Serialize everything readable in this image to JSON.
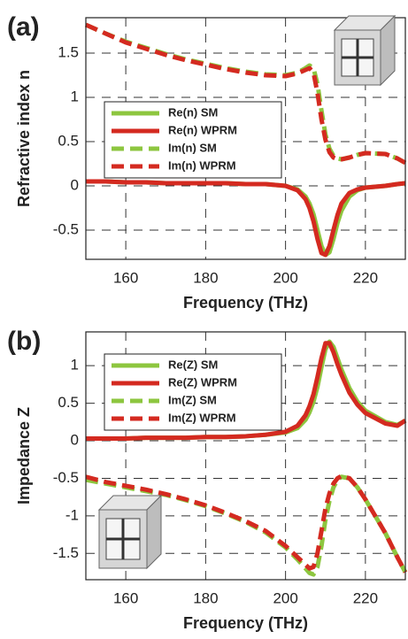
{
  "chart_data": [
    {
      "type": "line",
      "label": "(a)",
      "xlabel": "Frequency (THz)",
      "ylabel": "Refractive index n",
      "x": [
        150,
        155,
        160,
        165,
        170,
        175,
        180,
        185,
        190,
        195,
        200,
        203,
        205,
        206,
        207,
        208,
        209,
        210,
        211,
        212,
        213,
        214,
        216,
        218,
        220,
        225,
        228,
        230
      ],
      "series": [
        {
          "name": "Re(n) SM",
          "color": "#8dc63f",
          "dash": false,
          "values": [
            0.05,
            0.05,
            0.04,
            0.04,
            0.03,
            0.03,
            0.03,
            0.03,
            0.02,
            0.02,
            0,
            -0.04,
            -0.12,
            -0.2,
            -0.32,
            -0.5,
            -0.68,
            -0.78,
            -0.75,
            -0.6,
            -0.42,
            -0.28,
            -0.12,
            -0.05,
            -0.02,
            0,
            0.02,
            0.03
          ]
        },
        {
          "name": "Re(n) WPRM",
          "color": "#d42a20",
          "dash": false,
          "values": [
            0.05,
            0.05,
            0.04,
            0.04,
            0.03,
            0.03,
            0.03,
            0.03,
            0.02,
            0.02,
            0,
            -0.05,
            -0.15,
            -0.25,
            -0.4,
            -0.6,
            -0.76,
            -0.78,
            -0.68,
            -0.5,
            -0.33,
            -0.2,
            -0.08,
            -0.04,
            -0.02,
            0,
            0.02,
            0.03
          ]
        },
        {
          "name": "Im(n) SM",
          "color": "#8dc63f",
          "dash": true,
          "values": [
            1.82,
            1.72,
            1.63,
            1.56,
            1.49,
            1.43,
            1.38,
            1.33,
            1.29,
            1.26,
            1.25,
            1.28,
            1.33,
            1.36,
            1.33,
            1.15,
            0.85,
            0.58,
            0.42,
            0.34,
            0.31,
            0.3,
            0.32,
            0.35,
            0.37,
            0.36,
            0.31,
            0.26
          ]
        },
        {
          "name": "Im(n) WPRM",
          "color": "#d42a20",
          "dash": true,
          "values": [
            1.82,
            1.72,
            1.62,
            1.55,
            1.48,
            1.42,
            1.37,
            1.32,
            1.28,
            1.25,
            1.24,
            1.27,
            1.31,
            1.33,
            1.28,
            1.05,
            0.75,
            0.52,
            0.38,
            0.32,
            0.3,
            0.3,
            0.32,
            0.35,
            0.37,
            0.36,
            0.31,
            0.26
          ]
        }
      ],
      "xlim": [
        150,
        230
      ],
      "ylim": [
        -0.83,
        1.9
      ],
      "xticks": [
        160,
        180,
        200,
        220
      ],
      "yticks": [
        -0.5,
        0,
        0.5,
        1,
        1.5
      ],
      "grid": true
    },
    {
      "type": "line",
      "label": "(b)",
      "xlabel": "Frequency (THz)",
      "ylabel": "Impedance Z",
      "x": [
        150,
        155,
        160,
        165,
        170,
        175,
        180,
        185,
        190,
        195,
        200,
        203,
        205,
        206,
        207,
        208,
        209,
        210,
        211,
        212,
        213,
        214,
        216,
        218,
        220,
        225,
        228,
        230
      ],
      "series": [
        {
          "name": "Re(Z) SM",
          "color": "#8dc63f",
          "dash": false,
          "values": [
            0.03,
            0.03,
            0.03,
            0.04,
            0.04,
            0.04,
            0.05,
            0.05,
            0.06,
            0.08,
            0.11,
            0.17,
            0.28,
            0.38,
            0.52,
            0.72,
            0.98,
            1.22,
            1.32,
            1.25,
            1.1,
            0.95,
            0.7,
            0.52,
            0.4,
            0.25,
            0.21,
            0.27
          ]
        },
        {
          "name": "Re(Z) WPRM",
          "color": "#d42a20",
          "dash": false,
          "values": [
            0.03,
            0.03,
            0.03,
            0.04,
            0.04,
            0.04,
            0.05,
            0.05,
            0.06,
            0.08,
            0.12,
            0.2,
            0.34,
            0.46,
            0.62,
            0.85,
            1.1,
            1.3,
            1.3,
            1.18,
            1.02,
            0.88,
            0.64,
            0.48,
            0.37,
            0.23,
            0.2,
            0.27
          ]
        },
        {
          "name": "Im(Z) SM",
          "color": "#8dc63f",
          "dash": true,
          "values": [
            -0.52,
            -0.57,
            -0.62,
            -0.67,
            -0.72,
            -0.79,
            -0.87,
            -0.97,
            -1.08,
            -1.22,
            -1.42,
            -1.58,
            -1.7,
            -1.76,
            -1.78,
            -1.68,
            -1.4,
            -1.05,
            -0.8,
            -0.62,
            -0.52,
            -0.48,
            -0.5,
            -0.62,
            -0.78,
            -1.23,
            -1.55,
            -1.75
          ]
        },
        {
          "name": "Im(Z) WPRM",
          "color": "#d42a20",
          "dash": true,
          "values": [
            -0.48,
            -0.55,
            -0.6,
            -0.65,
            -0.71,
            -0.78,
            -0.86,
            -0.96,
            -1.07,
            -1.2,
            -1.4,
            -1.55,
            -1.65,
            -1.7,
            -1.68,
            -1.5,
            -1.2,
            -0.9,
            -0.7,
            -0.57,
            -0.5,
            -0.47,
            -0.5,
            -0.62,
            -0.78,
            -1.23,
            -1.55,
            -1.75
          ]
        }
      ],
      "xlim": [
        150,
        230
      ],
      "ylim": [
        -1.85,
        1.45
      ],
      "xticks": [
        160,
        180,
        200,
        220
      ],
      "yticks": [
        -1.5,
        -1,
        -0.5,
        0,
        0.5,
        1
      ],
      "grid": true
    }
  ]
}
